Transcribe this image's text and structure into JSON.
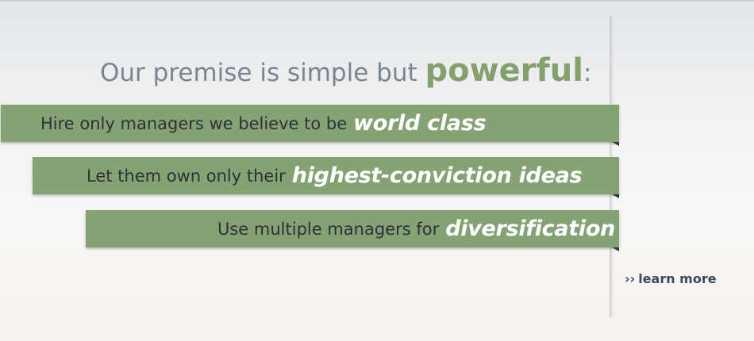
{
  "headline": {
    "lead": "Our premise is simple but",
    "emphasis": "powerful",
    "trail": ":"
  },
  "banners": [
    {
      "plain": "Hire only managers we believe to be",
      "emphasis": "world class"
    },
    {
      "plain": "Let them own only their",
      "emphasis": "highest-conviction ideas"
    },
    {
      "plain": "Use multiple managers for",
      "emphasis": "diversification"
    }
  ],
  "learn_more": {
    "chevron": "››",
    "label": "learn more"
  },
  "colors": {
    "banner_fill": "#85a274",
    "headline_text": "#7a8591",
    "headline_emphasis": "#85a06f",
    "banner_text": "#2d3037",
    "banner_emphasis": "#ffffff",
    "link_text": "#3c4a60"
  }
}
